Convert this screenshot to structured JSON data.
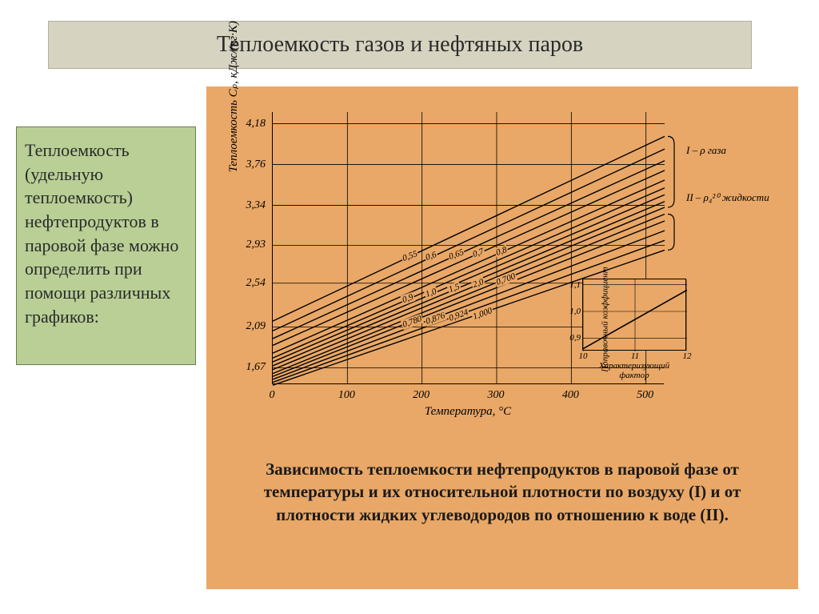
{
  "title": "Теплоемкость газов и нефтяных паров",
  "sidebar_text": "Теплоемкость (удельную теплоемкость) нефтепродуктов в паровой фазе можно определить при помощи различных графиков:",
  "caption": "Зависимость теплоемкости нефтепродуктов в паровой фазе от температуры и их относительной плотности по воздуху (I) и от плотности жидких углеводородов по отношению к воде (II).",
  "chart": {
    "type": "line",
    "xlabel": "Температура, °С",
    "ylabel": "Теплоемкость Cₚ, кДж/(кг·К)",
    "xlim": [
      0,
      525
    ],
    "ylim": [
      1.5,
      4.3
    ],
    "xticks": [
      0,
      100,
      200,
      300,
      400,
      500
    ],
    "yticks": [
      1.67,
      2.09,
      2.54,
      2.93,
      3.34,
      3.76,
      4.18
    ],
    "ytick_labels": [
      "1,67",
      "2,09",
      "2,54",
      "2,93",
      "3,34",
      "3,76",
      "4,18"
    ],
    "xtick_labels": [
      "0",
      "100",
      "200",
      "300",
      "400",
      "500"
    ],
    "series": [
      {
        "label": "0,55",
        "y0": 2.15,
        "y1": 4.05
      },
      {
        "label": "0,6",
        "y0": 2.05,
        "y1": 3.92
      },
      {
        "label": "0,65",
        "y0": 1.97,
        "y1": 3.8
      },
      {
        "label": "0,7",
        "y0": 1.9,
        "y1": 3.7
      },
      {
        "label": "0,8",
        "y0": 1.82,
        "y1": 3.6
      },
      {
        "label": "0,9",
        "y0": 1.77,
        "y1": 3.52
      },
      {
        "label": "1,0",
        "y0": 1.73,
        "y1": 3.45
      },
      {
        "label": "1,5",
        "y0": 1.69,
        "y1": 3.38
      },
      {
        "label": "2,0",
        "y0": 1.65,
        "y1": 3.32
      },
      {
        "label": "0,700",
        "y0": 1.61,
        "y1": 3.25
      },
      {
        "label": "0,780",
        "y0": 1.58,
        "y1": 3.18
      },
      {
        "label": "0,876",
        "y0": 1.55,
        "y1": 3.08
      },
      {
        "label": "0,924",
        "y0": 1.52,
        "y1": 2.98
      },
      {
        "label": "1,000",
        "y0": 1.49,
        "y1": 2.88
      }
    ],
    "group_labels": {
      "top": "I – ρ газа",
      "bottom": "II – ρ₄²⁰ жидкости"
    },
    "line_color": "#000000",
    "grid_color": "#000000",
    "background_color": "#e9a867",
    "label_fontsize": 15,
    "tick_fontsize": 14
  },
  "inset": {
    "type": "line",
    "xlabel": "Характеризующий фактор",
    "ylabel": "Поправочный коэффициент",
    "xlim": [
      10,
      12
    ],
    "ylim": [
      0.85,
      1.12
    ],
    "xticks": [
      10,
      11,
      12
    ],
    "yticks": [
      0.9,
      1.0,
      1.1
    ],
    "ytick_labels": [
      "0,9",
      "1,0",
      "1,1"
    ],
    "xtick_labels": [
      "10",
      "11",
      "12"
    ],
    "line": {
      "x0": 10,
      "y0": 0.86,
      "x1": 12,
      "y1": 1.08
    }
  },
  "colors": {
    "page_bg": "#ffffff",
    "title_bg": "#d6d3c0",
    "title_border": "#b4b09a",
    "sidebar_bg": "#b9cf95",
    "sidebar_border": "#6a7a4f",
    "panel_bg": "#e9a867",
    "text": "#2a2a2a"
  }
}
